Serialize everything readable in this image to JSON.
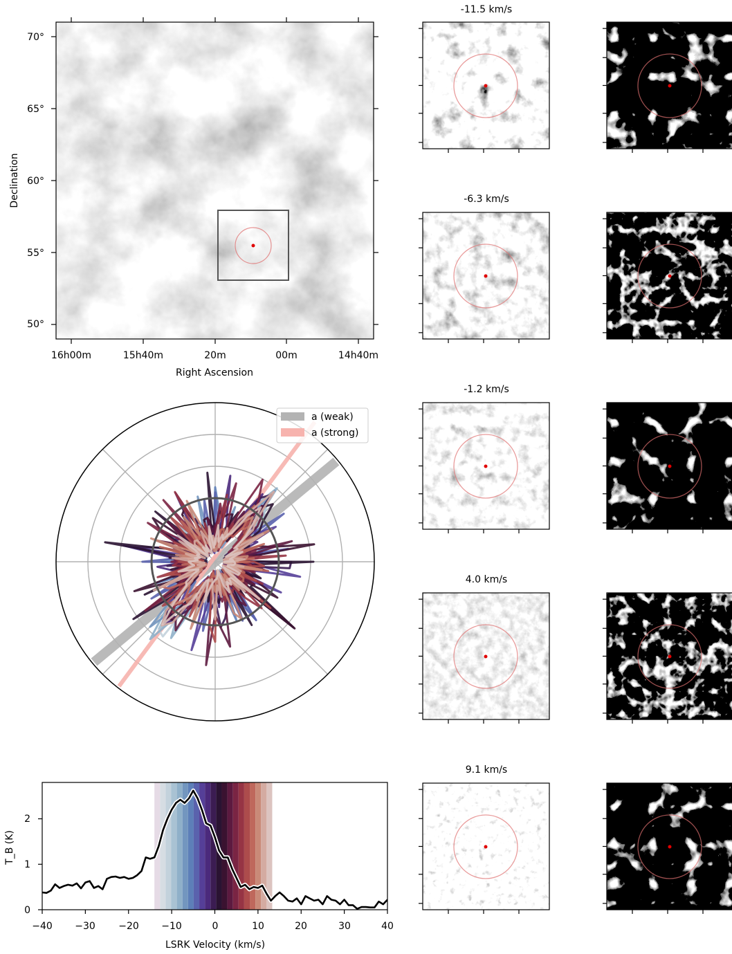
{
  "sky_map": {
    "xlabel": "Right Ascension",
    "ylabel": "Declination",
    "ra_ticks": [
      "16h00m",
      "15h40m",
      "20m",
      "00m",
      "14h40m"
    ],
    "dec_ticks": [
      "50°",
      "55°",
      "60°",
      "65°",
      "70°"
    ]
  },
  "polar": {
    "legend": [
      "a (weak)",
      "a (strong)"
    ],
    "colors": {
      "weak": "#b3b3b3",
      "strong": "#f7b3ae"
    }
  },
  "panels": {
    "velocities": [
      "-11.5 km/s",
      "-6.3 km/s",
      "-1.2 km/s",
      "4.0 km/s",
      "9.1 km/s"
    ]
  },
  "chart_data": {
    "type": "line",
    "xlabel": "LSRK Velocity (km/s)",
    "ylabel": "T_B (K)",
    "xlim": [
      -40,
      40
    ],
    "ylim": [
      0,
      2.8
    ],
    "x_ticks": [
      "−40",
      "−30",
      "−20",
      "−10",
      "0",
      "10",
      "20",
      "30",
      "40"
    ],
    "y_ticks": [
      "0",
      "1",
      "2"
    ],
    "x": [
      -40,
      -39,
      -38,
      -37,
      -36,
      -35,
      -34,
      -33,
      -32,
      -31,
      -30,
      -29,
      -28,
      -27,
      -26,
      -25,
      -24,
      -23,
      -22,
      -21,
      -20,
      -19,
      -18,
      -17,
      -16,
      -15,
      -14,
      -13,
      -12,
      -11,
      -10,
      -9,
      -8,
      -7,
      -6,
      -5,
      -4,
      -3,
      -2,
      -1,
      0,
      1,
      2,
      3,
      4,
      5,
      6,
      7,
      8,
      9,
      10,
      11,
      12,
      13,
      14,
      15,
      16,
      17,
      18,
      19,
      20,
      21,
      22,
      23,
      24,
      25,
      26,
      27,
      28,
      29,
      30,
      31,
      32,
      33,
      34,
      35,
      36,
      37,
      38,
      39,
      40
    ],
    "values": [
      0.38,
      0.37,
      0.42,
      0.56,
      0.48,
      0.52,
      0.55,
      0.53,
      0.58,
      0.47,
      0.6,
      0.63,
      0.48,
      0.52,
      0.45,
      0.68,
      0.72,
      0.73,
      0.7,
      0.72,
      0.68,
      0.7,
      0.76,
      0.85,
      1.15,
      1.12,
      1.15,
      1.4,
      1.75,
      2.0,
      2.2,
      2.35,
      2.42,
      2.35,
      2.45,
      2.62,
      2.45,
      2.2,
      1.9,
      1.85,
      1.6,
      1.3,
      1.15,
      1.15,
      0.9,
      0.7,
      0.5,
      0.55,
      0.45,
      0.5,
      0.48,
      0.53,
      0.35,
      0.2,
      0.3,
      0.38,
      0.3,
      0.2,
      0.18,
      0.25,
      0.12,
      0.3,
      0.25,
      0.2,
      0.22,
      0.12,
      0.3,
      0.22,
      0.2,
      0.12,
      0.22,
      0.1,
      0.1,
      0.02,
      0.06,
      0.06,
      0.05,
      0.05,
      0.18,
      0.12,
      0.22
    ],
    "velocity_bands": {
      "start": -14,
      "width": 1.3,
      "colors": [
        "#e6dbe6",
        "#d6dde3",
        "#c3d2dc",
        "#a9c2d3",
        "#8fb0c9",
        "#7396bf",
        "#5d7fb8",
        "#5a62ad",
        "#553f98",
        "#4b2a7c",
        "#3b1c52",
        "#2a1332",
        "#3a1230",
        "#5c1a3f",
        "#7a2443",
        "#963444",
        "#ad4c4c",
        "#bf685c",
        "#c98a78",
        "#d4aba1",
        "#dcc4c0"
      ]
    }
  }
}
